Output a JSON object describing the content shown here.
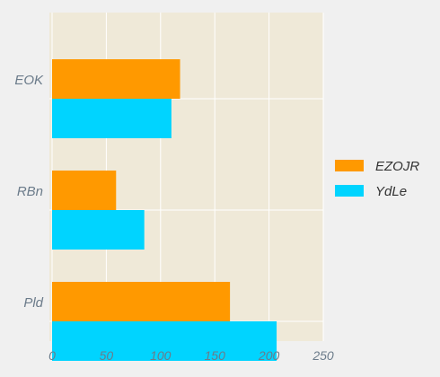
{
  "chart_data": {
    "type": "bar",
    "orientation": "horizontal",
    "categories": [
      "EOK",
      "RBn",
      "Pld"
    ],
    "series": [
      {
        "name": "EZOJR",
        "color": "#ff9900",
        "values": [
          118,
          59,
          164
        ]
      },
      {
        "name": "YdLe",
        "color": "#00d4ff",
        "values": [
          110,
          85,
          207
        ]
      }
    ],
    "xlim": [
      0,
      250
    ],
    "xticks": [
      "0",
      "50",
      "100",
      "150",
      "200",
      "250"
    ],
    "grid": true,
    "legend_position": "right",
    "plot_background": "#efe9d8",
    "figure_background": "#f0f0f0",
    "grid_color": "#ffffff"
  }
}
